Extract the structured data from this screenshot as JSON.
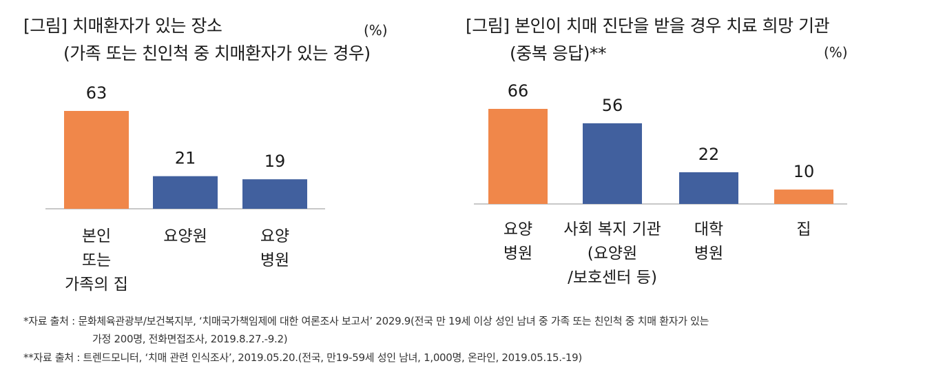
{
  "chart_data": [
    {
      "type": "bar",
      "title": "[그림] 치매환자가 있는 장소",
      "subtitle": "(가족 또는 친인척 중 치매환자가 있는 경우)",
      "unit": "(%)",
      "categories": [
        [
          "본인",
          "또는",
          "가족의 집"
        ],
        [
          "요양원"
        ],
        [
          "요양",
          "병원"
        ]
      ],
      "values": [
        63,
        21,
        19
      ],
      "colors": [
        "#F0874A",
        "#41609E",
        "#41609E"
      ],
      "ylim": [
        0,
        70
      ]
    },
    {
      "type": "bar",
      "title": "[그림] 본인이 치매 진단을 받을 경우 치료 희망 기관",
      "subtitle": "(중복 응답)**",
      "unit": "(%)",
      "categories": [
        [
          "요양",
          "병원"
        ],
        [
          "사회 복지 기관",
          "(요양원",
          "/보호센터 등)"
        ],
        [
          "대학",
          "병원"
        ],
        [
          "집"
        ]
      ],
      "values": [
        66,
        56,
        22,
        10
      ],
      "colors": [
        "#F0874A",
        "#41609E",
        "#41609E",
        "#F0874A"
      ],
      "ylim": [
        0,
        70
      ]
    }
  ],
  "footnotes": {
    "line1": "*자료 출처 : 문화체육관광부/보건복지부, ‘치매국가책임제에 대한 여론조사 보고서’ 2029.9(전국 만 19세 이상 성인 남녀 중 가족 또는 친인척 중 치매 환자가 있는",
    "line2": "가정 200명, 전화면접조사, 2019.8.27.-9.2)",
    "line3": "**자료 출처 : 트렌드모니터, ‘치매 관련 인식조사’, 2019.05.20.(전국, 만19-59세 성인 남녀, 1,000명, 온라인, 2019.05.15.-19)"
  },
  "colors": {
    "orange": "#F0874A",
    "blue": "#41609E",
    "axis": "#c8c8c8"
  }
}
